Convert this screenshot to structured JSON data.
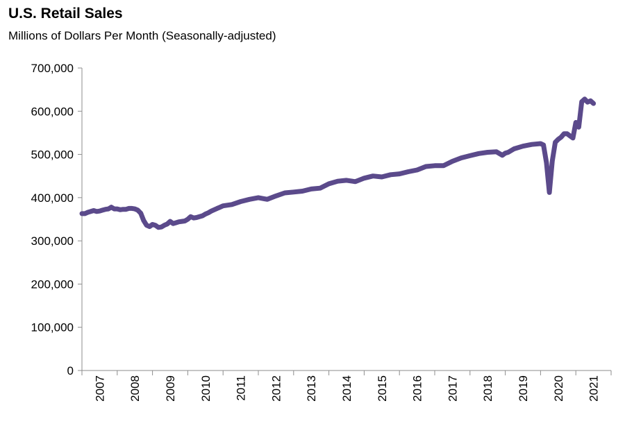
{
  "chart_data": {
    "type": "line",
    "title": "U.S. Retail Sales",
    "subtitle": "Millions of Dollars Per Month (Seasonally-adjusted)",
    "xlabel": "",
    "ylabel": "",
    "ylim": [
      0,
      700000
    ],
    "y_ticks": [
      0,
      100000,
      200000,
      300000,
      400000,
      500000,
      600000,
      700000
    ],
    "y_tick_labels": [
      "0",
      "100,000",
      "200,000",
      "300,000",
      "400,000",
      "500,000",
      "600,000",
      "700,000"
    ],
    "x_range": [
      2007.0,
      2021.0
    ],
    "x_tick_labels": [
      "2007",
      "2008",
      "2009",
      "2010",
      "2011",
      "2012",
      "2013",
      "2014",
      "2015",
      "2016",
      "2017",
      "2018",
      "2019",
      "2020",
      "2021"
    ],
    "grid": false,
    "line_color": "#5b4a8b",
    "series": [
      {
        "name": "U.S. Retail Sales",
        "x": [
          2007.0,
          2007.083,
          2007.167,
          2007.25,
          2007.333,
          2007.417,
          2007.5,
          2007.583,
          2007.667,
          2007.75,
          2007.833,
          2007.917,
          2008.0,
          2008.083,
          2008.167,
          2008.25,
          2008.333,
          2008.417,
          2008.5,
          2008.583,
          2008.667,
          2008.75,
          2008.833,
          2008.917,
          2009.0,
          2009.083,
          2009.167,
          2009.25,
          2009.333,
          2009.417,
          2009.5,
          2009.583,
          2009.667,
          2009.75,
          2009.833,
          2009.917,
          2010.0,
          2010.083,
          2010.167,
          2010.25,
          2010.333,
          2010.417,
          2010.5,
          2010.583,
          2010.667,
          2010.75,
          2010.833,
          2010.917,
          2011.0,
          2011.25,
          2011.5,
          2011.75,
          2012.0,
          2012.25,
          2012.5,
          2012.75,
          2013.0,
          2013.25,
          2013.5,
          2013.75,
          2014.0,
          2014.25,
          2014.5,
          2014.75,
          2015.0,
          2015.25,
          2015.5,
          2015.75,
          2016.0,
          2016.25,
          2016.5,
          2016.75,
          2017.0,
          2017.25,
          2017.5,
          2017.75,
          2018.0,
          2018.25,
          2018.5,
          2018.75,
          2018.917,
          2019.0,
          2019.083,
          2019.25,
          2019.5,
          2019.75,
          2020.0,
          2020.083,
          2020.167,
          2020.25,
          2020.333,
          2020.417,
          2020.5,
          2020.583,
          2020.667,
          2020.75,
          2020.833,
          2020.917,
          2021.0,
          2021.083,
          2021.167,
          2021.25,
          2021.333,
          2021.417,
          2021.5
        ],
        "values": [
          363000,
          363000,
          366000,
          368000,
          370000,
          368000,
          369000,
          371000,
          373000,
          374000,
          378000,
          374000,
          374000,
          372000,
          373000,
          373000,
          375000,
          375000,
          374000,
          371000,
          364000,
          347000,
          336000,
          333000,
          338000,
          336000,
          331000,
          332000,
          336000,
          339000,
          345000,
          340000,
          342000,
          344000,
          345000,
          346000,
          350000,
          356000,
          353000,
          354000,
          356000,
          358000,
          362000,
          365000,
          369000,
          372000,
          375000,
          378000,
          381000,
          384000,
          391000,
          396000,
          400000,
          396000,
          404000,
          411000,
          413000,
          415000,
          420000,
          422000,
          432000,
          438000,
          440000,
          437000,
          445000,
          450000,
          448000,
          453000,
          455000,
          460000,
          464000,
          472000,
          474000,
          474000,
          484000,
          492000,
          497000,
          502000,
          505000,
          506000,
          498000,
          503000,
          505000,
          513000,
          519000,
          523000,
          525000,
          522000,
          481000,
          412000,
          485000,
          528000,
          535000,
          540000,
          548000,
          548000,
          543000,
          538000,
          574000,
          563000,
          622000,
          628000,
          621000,
          624000,
          618000
        ]
      }
    ]
  }
}
